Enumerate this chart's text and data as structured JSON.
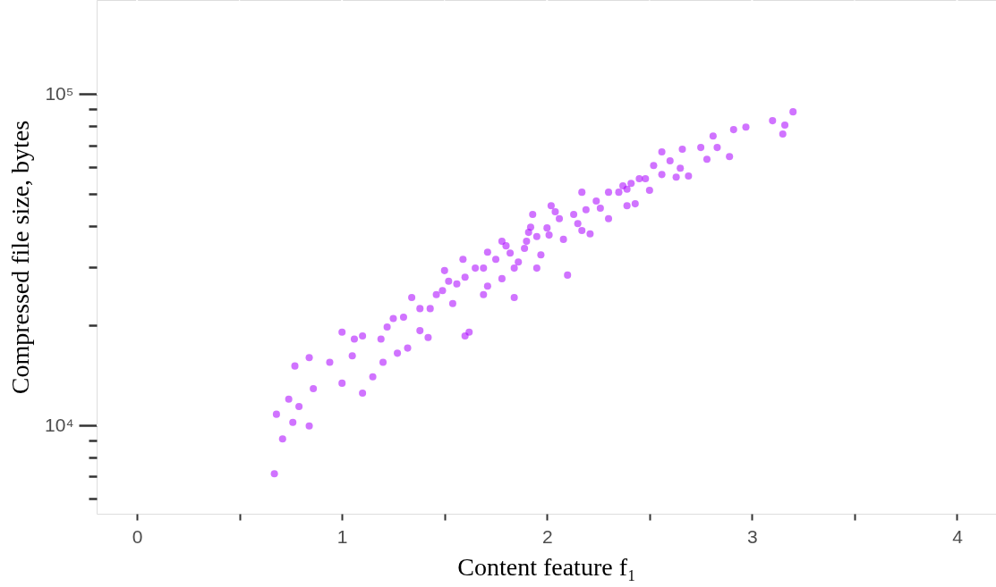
{
  "chart_data": {
    "type": "scatter",
    "xlabel": "Content feature f₁",
    "ylabel": "Compressed file size, bytes",
    "log": "y",
    "grid": true,
    "marker": "circle",
    "xlim": [
      -0.197,
      4.19
    ],
    "ylim": [
      5410,
      192000
    ],
    "xticks": [
      0,
      {
        "value": 0.5,
        "label": null
      },
      1,
      {
        "value": 1.5,
        "label": null
      },
      2,
      {
        "value": 2.5,
        "label": null
      },
      3,
      {
        "value": 3.5,
        "label": null
      },
      4
    ],
    "yticks": [
      {
        "value": 6000,
        "label": null
      },
      {
        "value": 7000,
        "label": null
      },
      {
        "value": 8000,
        "label": null
      },
      {
        "value": 9000,
        "label": null
      },
      {
        "value": 10000,
        "label": "10⁴"
      },
      {
        "value": 20000,
        "label": null
      },
      {
        "value": 30000,
        "label": null
      },
      {
        "value": 40000,
        "label": null
      },
      {
        "value": 50000,
        "label": null
      },
      {
        "value": 60000,
        "label": null
      },
      {
        "value": 70000,
        "label": null
      },
      {
        "value": 80000,
        "label": null
      },
      {
        "value": 90000,
        "label": null
      },
      {
        "value": 100000,
        "label": "10⁵"
      }
    ],
    "series": [
      {
        "color": "#aa00ff",
        "x": [
          0.67,
          0.68,
          0.71,
          0.74,
          0.76,
          0.77,
          0.79,
          0.84,
          0.84,
          0.86,
          0.94,
          1.0,
          1.0,
          1.05,
          1.1,
          1.1,
          1.15,
          1.19,
          1.22,
          1.25,
          1.32,
          1.27,
          1.34,
          1.38,
          1.42,
          1.43,
          1.46,
          1.5,
          1.54,
          1.56,
          1.6,
          1.62,
          1.59,
          1.65,
          1.69,
          1.71,
          1.78,
          1.8,
          1.84,
          1.86,
          1.9,
          1.92,
          1.95,
          1.97,
          2.01,
          2.04,
          2.1,
          2.15,
          2.17,
          2.21,
          2.26,
          2.3,
          2.35,
          2.39,
          2.43,
          2.45,
          2.5,
          2.52,
          2.56,
          2.6,
          2.63,
          2.66,
          2.69,
          2.75,
          2.78,
          2.81,
          2.83,
          2.89,
          2.91,
          2.97,
          3.1,
          3.15,
          3.16,
          3.2,
          1.6,
          1.69,
          1.75,
          1.82,
          1.89,
          1.95,
          2.0,
          2.06,
          2.13,
          2.19,
          2.24,
          2.3,
          2.37,
          2.41,
          2.48,
          1.78,
          1.84,
          1.91,
          2.08,
          2.17,
          1.49,
          1.38,
          1.3,
          1.52,
          1.71,
          1.93,
          2.02,
          2.39,
          2.56,
          2.65,
          1.06,
          1.2
        ],
        "values": [
          7140,
          10800,
          9100,
          12000,
          10200,
          15100,
          11400,
          9950,
          16000,
          12900,
          15500,
          13400,
          19100,
          16200,
          12500,
          18600,
          14000,
          18200,
          19800,
          21000,
          17100,
          16500,
          24300,
          19300,
          18400,
          22500,
          24800,
          29300,
          23300,
          26700,
          18600,
          19100,
          31700,
          29800,
          24800,
          33300,
          27700,
          34800,
          24300,
          31100,
          35900,
          39600,
          29800,
          32700,
          37500,
          44100,
          28400,
          40600,
          50500,
          37800,
          45200,
          42000,
          50500,
          51600,
          46600,
          55500,
          51200,
          60800,
          57100,
          62800,
          56100,
          68100,
          56500,
          68900,
          63500,
          74600,
          68900,
          64700,
          78000,
          79400,
          83000,
          75700,
          80500,
          88300,
          28000,
          29800,
          31700,
          33100,
          34200,
          37100,
          39400,
          42000,
          43300,
          44700,
          47500,
          50500,
          52800,
          53700,
          55500,
          35900,
          29800,
          38200,
          36400,
          38700,
          25500,
          22500,
          21200,
          27200,
          26300,
          43300,
          46000,
          46000,
          66800,
          59700,
          18200,
          15500
        ]
      }
    ]
  }
}
